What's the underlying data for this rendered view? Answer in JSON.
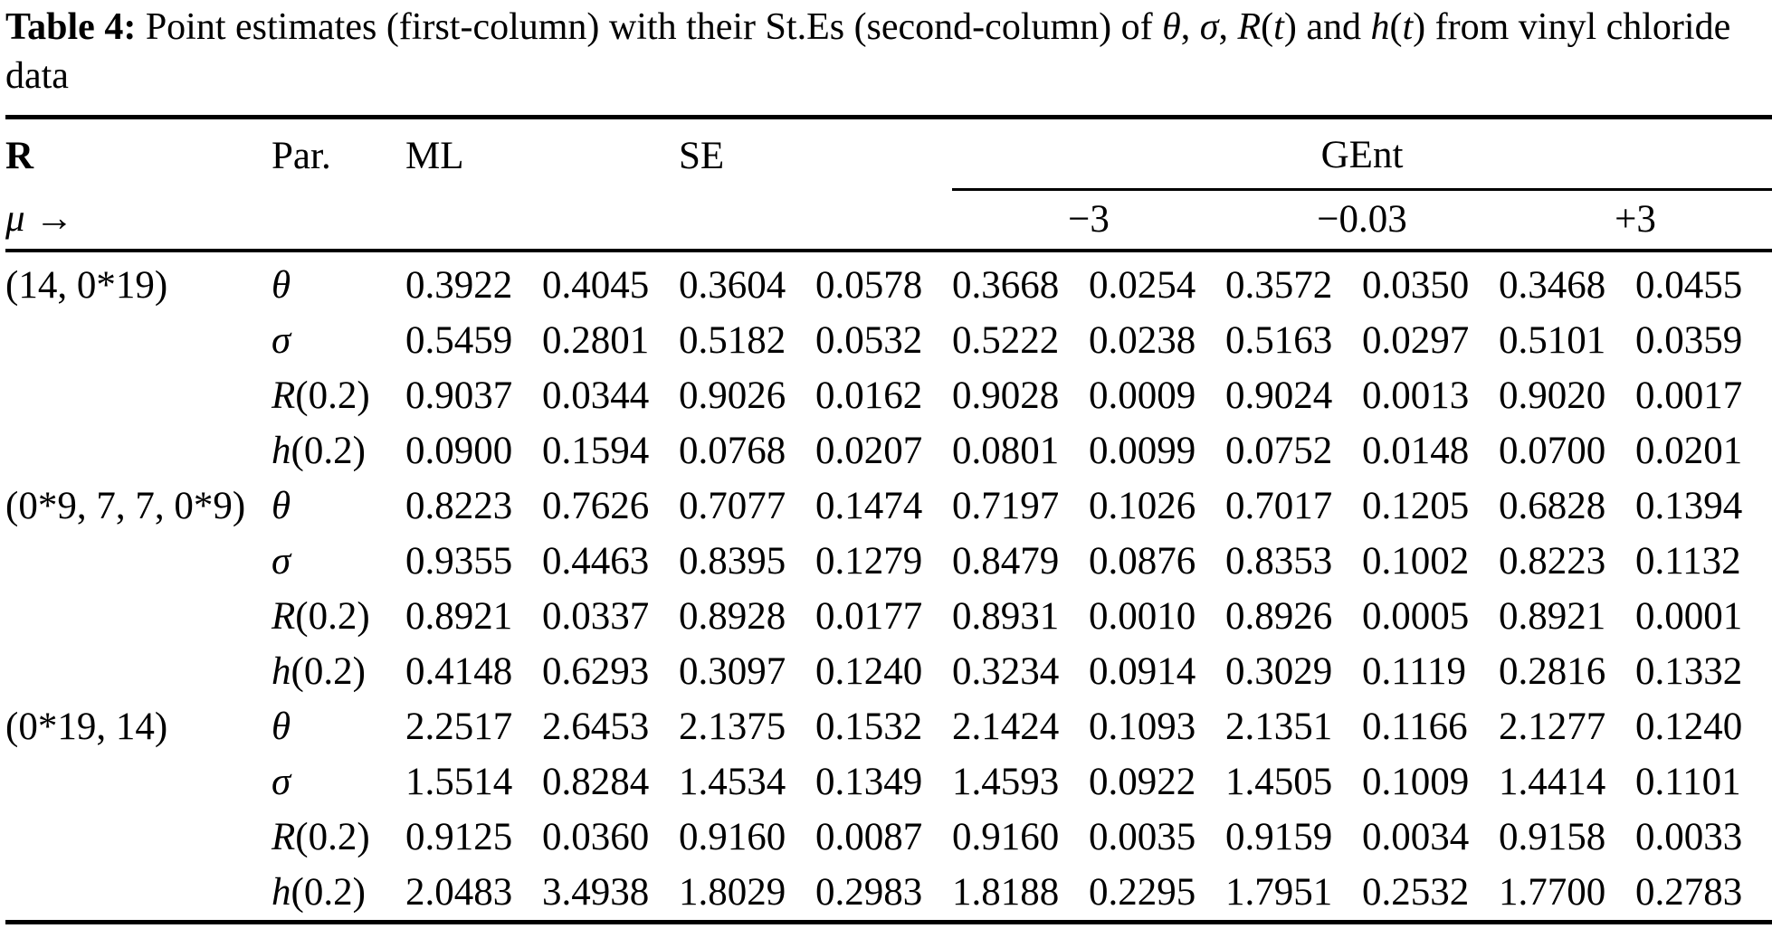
{
  "caption": {
    "label": "Table 4:",
    "parts": [
      {
        "text": " Point estimates (first-column) with their St.Es (second-column) of ",
        "italic": false
      },
      {
        "text": "θ",
        "italic": true
      },
      {
        "text": ", ",
        "italic": false
      },
      {
        "text": "σ",
        "italic": true
      },
      {
        "text": ", ",
        "italic": false
      },
      {
        "text": "R",
        "italic": true
      },
      {
        "text": "(",
        "italic": false
      },
      {
        "text": "t",
        "italic": true
      },
      {
        "text": ")",
        "italic": false
      },
      {
        "text": " and ",
        "italic": false
      },
      {
        "text": "h",
        "italic": true
      },
      {
        "text": "(",
        "italic": false
      },
      {
        "text": "t",
        "italic": true
      },
      {
        "text": ")",
        "italic": false
      },
      {
        "text": " from vinyl chloride data",
        "italic": false
      }
    ]
  },
  "table": {
    "header": {
      "r": "R",
      "par": "Par.",
      "ml": "ML",
      "se": "SE",
      "gent": "GEnt",
      "mu": "μ →",
      "mu_values": [
        "−3",
        "−0.03",
        "+3"
      ]
    },
    "groups": [
      {
        "r_label": "(14, 0*19)",
        "rows": [
          {
            "par_sym": "θ",
            "par_rest": "",
            "values": [
              "0.3922",
              "0.4045",
              "0.3604",
              "0.0578",
              "0.3668",
              "0.0254",
              "0.3572",
              "0.0350",
              "0.3468",
              "0.0455"
            ]
          },
          {
            "par_sym": "σ",
            "par_rest": "",
            "values": [
              "0.5459",
              "0.2801",
              "0.5182",
              "0.0532",
              "0.5222",
              "0.0238",
              "0.5163",
              "0.0297",
              "0.5101",
              "0.0359"
            ]
          },
          {
            "par_sym": "R",
            "par_rest": "(0.2)",
            "values": [
              "0.9037",
              "0.0344",
              "0.9026",
              "0.0162",
              "0.9028",
              "0.0009",
              "0.9024",
              "0.0013",
              "0.9020",
              "0.0017"
            ]
          },
          {
            "par_sym": "h",
            "par_rest": "(0.2)",
            "values": [
              "0.0900",
              "0.1594",
              "0.0768",
              "0.0207",
              "0.0801",
              "0.0099",
              "0.0752",
              "0.0148",
              "0.0700",
              "0.0201"
            ]
          }
        ]
      },
      {
        "r_label": "(0*9, 7, 7, 0*9)",
        "rows": [
          {
            "par_sym": "θ",
            "par_rest": "",
            "values": [
              "0.8223",
              "0.7626",
              "0.7077",
              "0.1474",
              "0.7197",
              "0.1026",
              "0.7017",
              "0.1205",
              "0.6828",
              "0.1394"
            ]
          },
          {
            "par_sym": "σ",
            "par_rest": "",
            "values": [
              "0.9355",
              "0.4463",
              "0.8395",
              "0.1279",
              "0.8479",
              "0.0876",
              "0.8353",
              "0.1002",
              "0.8223",
              "0.1132"
            ]
          },
          {
            "par_sym": "R",
            "par_rest": "(0.2)",
            "values": [
              "0.8921",
              "0.0337",
              "0.8928",
              "0.0177",
              "0.8931",
              "0.0010",
              "0.8926",
              "0.0005",
              "0.8921",
              "0.0001"
            ]
          },
          {
            "par_sym": "h",
            "par_rest": "(0.2)",
            "values": [
              "0.4148",
              "0.6293",
              "0.3097",
              "0.1240",
              "0.3234",
              "0.0914",
              "0.3029",
              "0.1119",
              "0.2816",
              "0.1332"
            ]
          }
        ]
      },
      {
        "r_label": "(0*19, 14)",
        "rows": [
          {
            "par_sym": "θ",
            "par_rest": "",
            "values": [
              "2.2517",
              "2.6453",
              "2.1375",
              "0.1532",
              "2.1424",
              "0.1093",
              "2.1351",
              "0.1166",
              "2.1277",
              "0.1240"
            ]
          },
          {
            "par_sym": "σ",
            "par_rest": "",
            "values": [
              "1.5514",
              "0.8284",
              "1.4534",
              "0.1349",
              "1.4593",
              "0.0922",
              "1.4505",
              "0.1009",
              "1.4414",
              "0.1101"
            ]
          },
          {
            "par_sym": "R",
            "par_rest": "(0.2)",
            "values": [
              "0.9125",
              "0.0360",
              "0.9160",
              "0.0087",
              "0.9160",
              "0.0035",
              "0.9159",
              "0.0034",
              "0.9158",
              "0.0033"
            ]
          },
          {
            "par_sym": "h",
            "par_rest": "(0.2)",
            "values": [
              "2.0483",
              "3.4938",
              "1.8029",
              "0.2983",
              "1.8188",
              "0.2295",
              "1.7951",
              "0.2532",
              "1.7700",
              "0.2783"
            ]
          }
        ]
      }
    ]
  }
}
